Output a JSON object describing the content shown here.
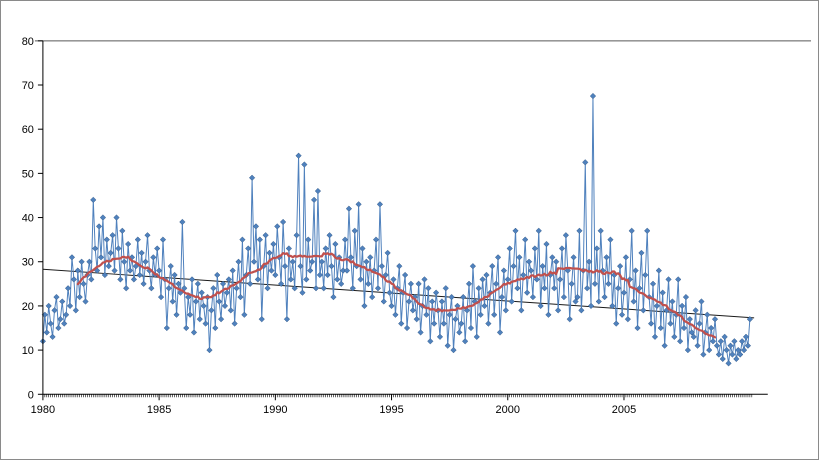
{
  "chart_data": {
    "type": "line",
    "title": "",
    "xlabel": "",
    "ylabel": "",
    "legend": "none",
    "grid": "off",
    "ylim": [
      0,
      80
    ],
    "xlim": [
      1980,
      2010.8
    ],
    "yticks": [
      0,
      10,
      20,
      30,
      40,
      50,
      60,
      70,
      80
    ],
    "xticks": [
      1980,
      1985,
      1990,
      1995,
      2000,
      2005
    ],
    "x_start": 1980,
    "frequency": "monthly",
    "series": [
      {
        "name": "monthly-values",
        "color": "#4F81BD",
        "marker": "diamond",
        "values": [
          12,
          18,
          14,
          20,
          16,
          13,
          19,
          22,
          15,
          17,
          21,
          16,
          18,
          24,
          20,
          31,
          26,
          19,
          28,
          22,
          30,
          25,
          21,
          27,
          30,
          26,
          44,
          33,
          28,
          38,
          31,
          40,
          27,
          35,
          29,
          32,
          36,
          28,
          40,
          33,
          26,
          37,
          30,
          24,
          34,
          28,
          31,
          26,
          29,
          35,
          27,
          32,
          25,
          30,
          36,
          28,
          24,
          31,
          27,
          33,
          28,
          22,
          35,
          26,
          15,
          24,
          29,
          21,
          27,
          18,
          25,
          23,
          39,
          24,
          15,
          22,
          18,
          26,
          14,
          21,
          25,
          17,
          23,
          20,
          16,
          22,
          10,
          19,
          24,
          15,
          27,
          21,
          17,
          25,
          20,
          23,
          26,
          19,
          28,
          16,
          24,
          30,
          22,
          35,
          18,
          27,
          33,
          25,
          49,
          30,
          38,
          26,
          35,
          17,
          29,
          36,
          24,
          32,
          28,
          34,
          27,
          38,
          31,
          25,
          39,
          29,
          17,
          33,
          26,
          30,
          24,
          36,
          54,
          29,
          23,
          52,
          26,
          35,
          28,
          30,
          44,
          24,
          46,
          27,
          30,
          24,
          33,
          27,
          36,
          29,
          22,
          34,
          26,
          31,
          25,
          28,
          35,
          28,
          42,
          31,
          24,
          37,
          29,
          43,
          26,
          33,
          20,
          30,
          25,
          31,
          22,
          28,
          35,
          24,
          43,
          29,
          21,
          27,
          32,
          23,
          20,
          26,
          18,
          24,
          29,
          16,
          23,
          27,
          15,
          21,
          25,
          19,
          22,
          17,
          25,
          14,
          20,
          26,
          18,
          24,
          12,
          21,
          16,
          23,
          19,
          13,
          21,
          16,
          24,
          11,
          18,
          22,
          10,
          17,
          20,
          14,
          16,
          22,
          12,
          19,
          25,
          15,
          29,
          21,
          13,
          24,
          18,
          26,
          20,
          27,
          16,
          23,
          29,
          18,
          25,
          31,
          14,
          22,
          28,
          19,
          26,
          33,
          21,
          29,
          37,
          24,
          31,
          19,
          27,
          35,
          23,
          30,
          28,
          22,
          33,
          26,
          37,
          20,
          29,
          24,
          34,
          18,
          27,
          31,
          24,
          30,
          19,
          26,
          33,
          22,
          36,
          28,
          17,
          25,
          31,
          21,
          22,
          37,
          19,
          28,
          52.5,
          24,
          30,
          20,
          67.5,
          25,
          33,
          21,
          37,
          28,
          22,
          31,
          25,
          35,
          20,
          27,
          16,
          24,
          29,
          18,
          23,
          31,
          17,
          26,
          37,
          21,
          28,
          15,
          24,
          32,
          19,
          27,
          37,
          22,
          16,
          25,
          13,
          20,
          28,
          15,
          23,
          11,
          19,
          26,
          16,
          21,
          13,
          18,
          26,
          12,
          20,
          15,
          22,
          10,
          17,
          14,
          13,
          19,
          11,
          16,
          21,
          9,
          14,
          18,
          10,
          15,
          12,
          17,
          11,
          9,
          12,
          8,
          13,
          10,
          7,
          11,
          9,
          12,
          8,
          10,
          9,
          12,
          10,
          13,
          11,
          17
        ]
      },
      {
        "name": "moving-average",
        "color": "#C0504D",
        "window": 37
      },
      {
        "name": "linear-trend",
        "color": "#1a1a1a",
        "x": [
          1980,
          2010.6
        ],
        "y": [
          28.3,
          17.3
        ]
      }
    ]
  },
  "axis_color": "#000000",
  "top_border_color": "#595959"
}
